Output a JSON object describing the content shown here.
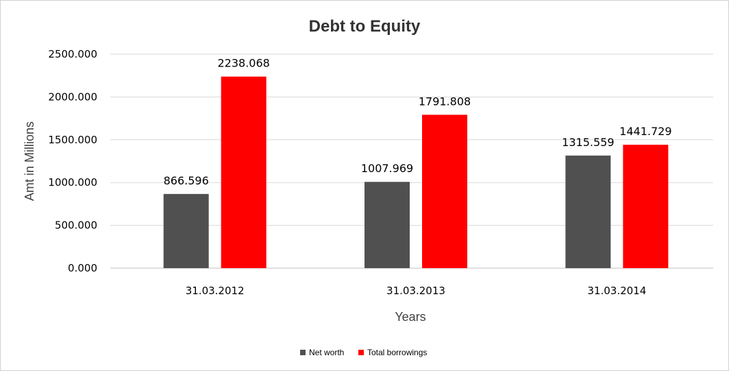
{
  "chart_data": {
    "type": "bar",
    "title": "Debt to Equity",
    "xlabel": "Years",
    "ylabel": "Amt in Millions",
    "categories": [
      "31.03.2012",
      "31.03.2013",
      "31.03.2014"
    ],
    "series": [
      {
        "name": "Net worth",
        "values": [
          866.596,
          1007.969,
          1315.559
        ],
        "color": "#505050"
      },
      {
        "name": "Total borrowings",
        "values": [
          2238.068,
          1791.808,
          1441.729
        ],
        "color": "#ff0000"
      }
    ],
    "ylim": [
      0,
      2500
    ],
    "yticks": [
      0,
      500,
      1000,
      1500,
      2000,
      2500
    ],
    "ytick_decimals": 3,
    "grid": true,
    "legend": "bottom-center"
  }
}
